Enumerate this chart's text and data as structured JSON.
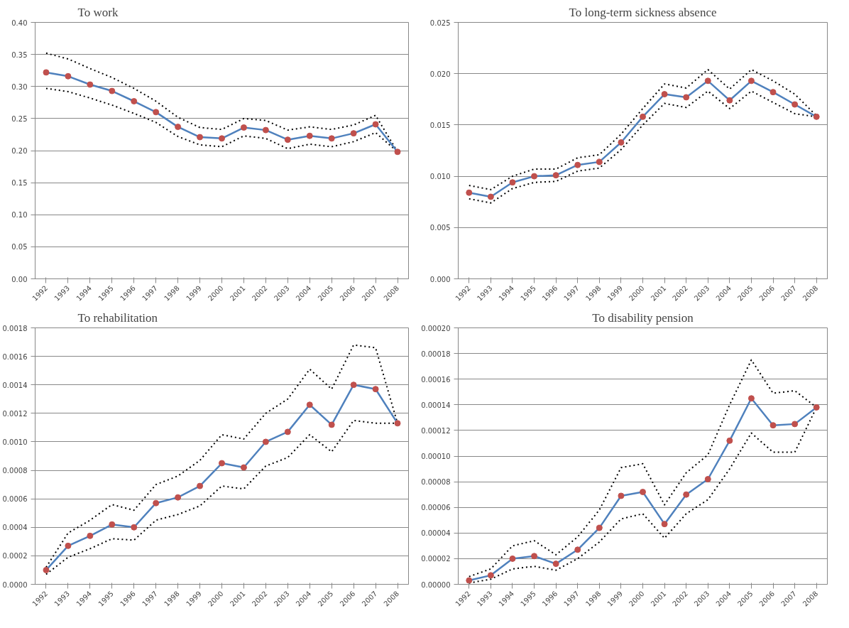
{
  "chart_data": [
    {
      "type": "line",
      "title": "To work",
      "categories": [
        "1992",
        "1993",
        "1994",
        "1995",
        "1996",
        "1997",
        "1998",
        "1999",
        "2000",
        "2001",
        "2002",
        "2003",
        "2004",
        "2005",
        "2006",
        "2007",
        "2008"
      ],
      "ylim": [
        0,
        0.4
      ],
      "yticks": [
        {
          "value": 0,
          "label": "0.00"
        },
        {
          "value": 0.05,
          "label": "0.05"
        },
        {
          "value": 0.1,
          "label": "0.10"
        },
        {
          "value": 0.15,
          "label": "0.15"
        },
        {
          "value": 0.2,
          "label": "0.20"
        },
        {
          "value": 0.25,
          "label": "0.25"
        },
        {
          "value": 0.3,
          "label": "0.30"
        },
        {
          "value": 0.35,
          "label": "0.35"
        },
        {
          "value": 0.4,
          "label": "0.40"
        }
      ],
      "grid": "y",
      "marker": "circle",
      "line_style": "solid",
      "series": [
        {
          "color": "#000000",
          "line_style": "dotted",
          "marker": "none",
          "values": [
            0.352,
            0.343,
            0.328,
            0.314,
            0.297,
            0.277,
            0.252,
            0.236,
            0.233,
            0.25,
            0.247,
            0.232,
            0.237,
            0.233,
            0.24,
            0.255,
            0.198
          ]
        },
        {
          "color": "#000000",
          "line_style": "dotted",
          "marker": "none",
          "values": [
            0.297,
            0.292,
            0.282,
            0.271,
            0.258,
            0.244,
            0.222,
            0.209,
            0.206,
            0.223,
            0.219,
            0.203,
            0.21,
            0.206,
            0.214,
            0.228,
            0.198
          ]
        },
        {
          "color": "#4f81bd",
          "values": [
            0.322,
            0.316,
            0.303,
            0.293,
            0.277,
            0.26,
            0.237,
            0.221,
            0.219,
            0.236,
            0.232,
            0.217,
            0.223,
            0.219,
            0.227,
            0.241,
            0.198
          ]
        }
      ]
    },
    {
      "type": "line",
      "title": "To long-term sickness absence",
      "categories": [
        "1992",
        "1993",
        "1994",
        "1995",
        "1996",
        "1997",
        "1998",
        "1999",
        "2000",
        "2001",
        "2002",
        "2003",
        "2004",
        "2005",
        "2006",
        "2007",
        "2008"
      ],
      "ylim": [
        0,
        0.025
      ],
      "yticks": [
        {
          "value": 0,
          "label": "0.000"
        },
        {
          "value": 0.005,
          "label": "0.005"
        },
        {
          "value": 0.01,
          "label": "0.010"
        },
        {
          "value": 0.015,
          "label": "0.015"
        },
        {
          "value": 0.02,
          "label": "0.020"
        },
        {
          "value": 0.025,
          "label": "0.025"
        }
      ],
      "grid": "y",
      "marker": "circle",
      "line_style": "solid",
      "series": [
        {
          "color": "#000000",
          "line_style": "dotted",
          "marker": "none",
          "values": [
            0.0091,
            0.0087,
            0.01,
            0.0107,
            0.0107,
            0.0118,
            0.0121,
            0.0141,
            0.0166,
            0.019,
            0.0186,
            0.0204,
            0.0185,
            0.0204,
            0.0193,
            0.018,
            0.0159
          ]
        },
        {
          "color": "#000000",
          "line_style": "dotted",
          "marker": "none",
          "values": [
            0.0078,
            0.0074,
            0.0088,
            0.0094,
            0.0095,
            0.0105,
            0.0108,
            0.0126,
            0.015,
            0.0171,
            0.0167,
            0.0183,
            0.0166,
            0.0183,
            0.0172,
            0.0161,
            0.0158
          ]
        },
        {
          "color": "#4f81bd",
          "values": [
            0.0084,
            0.008,
            0.0094,
            0.01,
            0.0101,
            0.0111,
            0.0114,
            0.0133,
            0.0158,
            0.018,
            0.0177,
            0.0193,
            0.0174,
            0.0193,
            0.0182,
            0.017,
            0.0158
          ]
        }
      ]
    },
    {
      "type": "line",
      "title": "To rehabilitation",
      "categories": [
        "1992",
        "1993",
        "1994",
        "1995",
        "1996",
        "1997",
        "1998",
        "1999",
        "2000",
        "2001",
        "2002",
        "2003",
        "2004",
        "2005",
        "2006",
        "2007",
        "2008"
      ],
      "ylim": [
        0,
        0.0018
      ],
      "yticks": [
        {
          "value": 0,
          "label": "0.0000"
        },
        {
          "value": 0.0002,
          "label": "0.0002"
        },
        {
          "value": 0.0004,
          "label": "0.0004"
        },
        {
          "value": 0.0006,
          "label": "0.0006"
        },
        {
          "value": 0.0008,
          "label": "0.0008"
        },
        {
          "value": 0.001,
          "label": "0.0010"
        },
        {
          "value": 0.0012,
          "label": "0.0012"
        },
        {
          "value": 0.0014,
          "label": "0.0014"
        },
        {
          "value": 0.0016,
          "label": "0.0016"
        },
        {
          "value": 0.0018,
          "label": "0.0018"
        }
      ],
      "grid": "y",
      "marker": "circle",
      "line_style": "solid",
      "series": [
        {
          "color": "#000000",
          "line_style": "dotted",
          "marker": "none",
          "values": [
            0.00012,
            0.00036,
            0.00045,
            0.00056,
            0.00052,
            0.0007,
            0.00076,
            0.00087,
            0.00105,
            0.00102,
            0.0012,
            0.0013,
            0.00151,
            0.00137,
            0.00168,
            0.00166,
            0.00113
          ]
        },
        {
          "color": "#000000",
          "line_style": "dotted",
          "marker": "none",
          "values": [
            7e-05,
            0.00019,
            0.00025,
            0.00032,
            0.00031,
            0.00045,
            0.00049,
            0.00055,
            0.00069,
            0.00067,
            0.00083,
            0.00089,
            0.00105,
            0.00093,
            0.00115,
            0.00113,
            0.00113
          ]
        },
        {
          "color": "#4f81bd",
          "values": [
            0.0001,
            0.00027,
            0.00034,
            0.00042,
            0.0004,
            0.00057,
            0.00061,
            0.00069,
            0.00085,
            0.00082,
            0.001,
            0.00107,
            0.00126,
            0.00112,
            0.0014,
            0.00137,
            0.00113
          ]
        }
      ]
    },
    {
      "type": "line",
      "title": "To disability pension",
      "categories": [
        "1992",
        "1993",
        "1994",
        "1995",
        "1996",
        "1997",
        "1998",
        "1999",
        "2000",
        "2001",
        "2002",
        "2003",
        "2004",
        "2005",
        "2006",
        "2007",
        "2008"
      ],
      "ylim": [
        0,
        0.0002
      ],
      "yticks": [
        {
          "value": 0,
          "label": "0.00000"
        },
        {
          "value": 2e-05,
          "label": "0.00002"
        },
        {
          "value": 4e-05,
          "label": "0.00004"
        },
        {
          "value": 6e-05,
          "label": "0.00006"
        },
        {
          "value": 8e-05,
          "label": "0.00008"
        },
        {
          "value": 0.0001,
          "label": "0.00010"
        },
        {
          "value": 0.00012,
          "label": "0.00012"
        },
        {
          "value": 0.00014,
          "label": "0.00014"
        },
        {
          "value": 0.00016,
          "label": "0.00016"
        },
        {
          "value": 0.00018,
          "label": "0.00018"
        },
        {
          "value": 0.0002,
          "label": "0.00020"
        }
      ],
      "grid": "y",
      "marker": "circle",
      "line_style": "solid",
      "series": [
        {
          "color": "#000000",
          "line_style": "dotted",
          "marker": "none",
          "values": [
            6e-06,
            1.2e-05,
            3e-05,
            3.4e-05,
            2.3e-05,
            3.7e-05,
            5.8e-05,
            9.1e-05,
            9.4e-05,
            6.2e-05,
            8.7e-05,
            0.000101,
            0.00014,
            0.000175,
            0.000149,
            0.000151,
            0.000138
          ]
        },
        {
          "color": "#000000",
          "line_style": "dotted",
          "marker": "none",
          "values": [
            1e-06,
            4e-06,
            1.2e-05,
            1.4e-05,
            1.1e-05,
            2e-05,
            3.3e-05,
            5.1e-05,
            5.5e-05,
            3.6e-05,
            5.5e-05,
            6.6e-05,
            9e-05,
            0.000118,
            0.000103,
            0.000103,
            0.000138
          ]
        },
        {
          "color": "#4f81bd",
          "values": [
            3e-06,
            7e-06,
            2e-05,
            2.2e-05,
            1.6e-05,
            2.7e-05,
            4.4e-05,
            6.9e-05,
            7.2e-05,
            4.7e-05,
            7e-05,
            8.2e-05,
            0.000112,
            0.000145,
            0.000124,
            0.000125,
            0.000138
          ]
        }
      ]
    }
  ]
}
